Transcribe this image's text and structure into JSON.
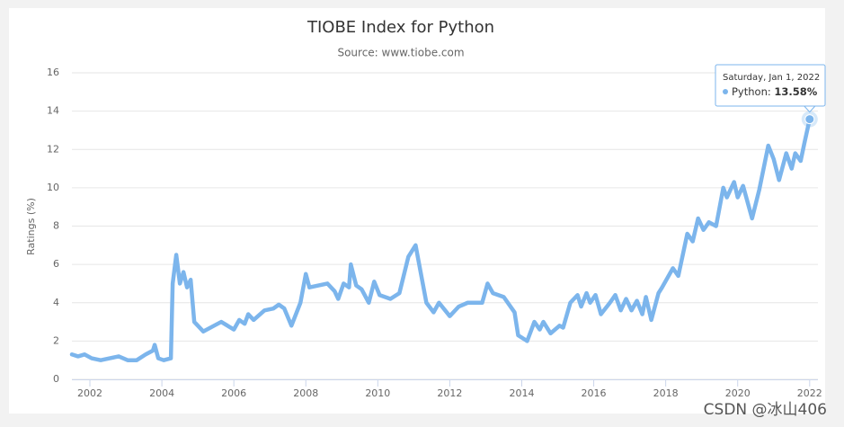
{
  "chart_data": {
    "type": "line",
    "title": "TIOBE Index for Python",
    "subtitle": "Source: www.tiobe.com",
    "y_label": "Ratings (%)",
    "xlim": [
      2001.5,
      2022.23
    ],
    "xticks": [
      2002,
      2004,
      2006,
      2008,
      2010,
      2012,
      2014,
      2016,
      2018,
      2020,
      2022
    ],
    "ylim": [
      0,
      16
    ],
    "yticks": [
      0,
      2,
      4,
      6,
      8,
      10,
      12,
      14,
      16
    ],
    "grid": true,
    "x": [
      2001.5,
      2001.67,
      2001.85,
      2002.05,
      2002.3,
      2002.55,
      2002.8,
      2003.05,
      2003.3,
      2003.55,
      2003.75,
      2003.8,
      2003.9,
      2004.05,
      2004.25,
      2004.3,
      2004.4,
      2004.5,
      2004.6,
      2004.7,
      2004.8,
      2004.9,
      2005.15,
      2005.45,
      2005.65,
      2006.0,
      2006.15,
      2006.3,
      2006.4,
      2006.55,
      2006.85,
      2007.1,
      2007.25,
      2007.4,
      2007.6,
      2007.85,
      2008.0,
      2008.1,
      2008.6,
      2008.8,
      2008.9,
      2009.05,
      2009.2,
      2009.25,
      2009.4,
      2009.55,
      2009.75,
      2009.9,
      2010.05,
      2010.35,
      2010.6,
      2010.85,
      2011.05,
      2011.2,
      2011.35,
      2011.55,
      2011.7,
      2012.0,
      2012.25,
      2012.5,
      2012.9,
      2013.05,
      2013.2,
      2013.5,
      2013.8,
      2013.9,
      2014.15,
      2014.35,
      2014.5,
      2014.6,
      2014.8,
      2015.05,
      2015.15,
      2015.35,
      2015.55,
      2015.65,
      2015.8,
      2015.9,
      2016.05,
      2016.2,
      2016.45,
      2016.6,
      2016.75,
      2016.9,
      2017.05,
      2017.2,
      2017.35,
      2017.45,
      2017.6,
      2017.8,
      2017.9,
      2018.2,
      2018.35,
      2018.6,
      2018.75,
      2018.9,
      2019.05,
      2019.2,
      2019.4,
      2019.6,
      2019.7,
      2019.9,
      2020.0,
      2020.15,
      2020.4,
      2020.6,
      2020.85,
      2021.0,
      2021.15,
      2021.35,
      2021.5,
      2021.6,
      2021.75,
      2021.85,
      2022.0
    ],
    "series": [
      {
        "name": "Python",
        "color": "#7cb5ec",
        "values": [
          1.3,
          1.2,
          1.3,
          1.1,
          1.0,
          1.1,
          1.2,
          1.0,
          1.0,
          1.3,
          1.5,
          1.8,
          1.1,
          1.0,
          1.1,
          5.0,
          6.5,
          5.0,
          5.6,
          4.8,
          5.2,
          3.0,
          2.5,
          2.8,
          3.0,
          2.6,
          3.1,
          2.9,
          3.4,
          3.1,
          3.6,
          3.7,
          3.9,
          3.7,
          2.8,
          4.0,
          5.5,
          4.8,
          5.0,
          4.6,
          4.2,
          5.0,
          4.8,
          6.0,
          4.9,
          4.7,
          4.0,
          5.1,
          4.4,
          4.2,
          4.5,
          6.4,
          7.0,
          5.5,
          4.0,
          3.5,
          4.0,
          3.3,
          3.8,
          4.0,
          4.0,
          5.0,
          4.5,
          4.3,
          3.5,
          2.3,
          2.0,
          3.0,
          2.6,
          3.0,
          2.4,
          2.8,
          2.7,
          4.0,
          4.4,
          3.8,
          4.5,
          4.0,
          4.4,
          3.4,
          4.0,
          4.4,
          3.6,
          4.2,
          3.6,
          4.1,
          3.4,
          4.3,
          3.1,
          4.5,
          4.8,
          5.8,
          5.4,
          7.6,
          7.2,
          8.4,
          7.8,
          8.2,
          8.0,
          10.0,
          9.5,
          10.3,
          9.5,
          10.1,
          8.4,
          9.9,
          12.2,
          11.5,
          10.4,
          11.8,
          11.0,
          11.8,
          11.4,
          12.3,
          13.58
        ]
      }
    ],
    "tooltip": {
      "date": "Saturday, Jan 1, 2022",
      "value_label": "13.58%"
    },
    "watermark": "CSDN @冰山406"
  }
}
